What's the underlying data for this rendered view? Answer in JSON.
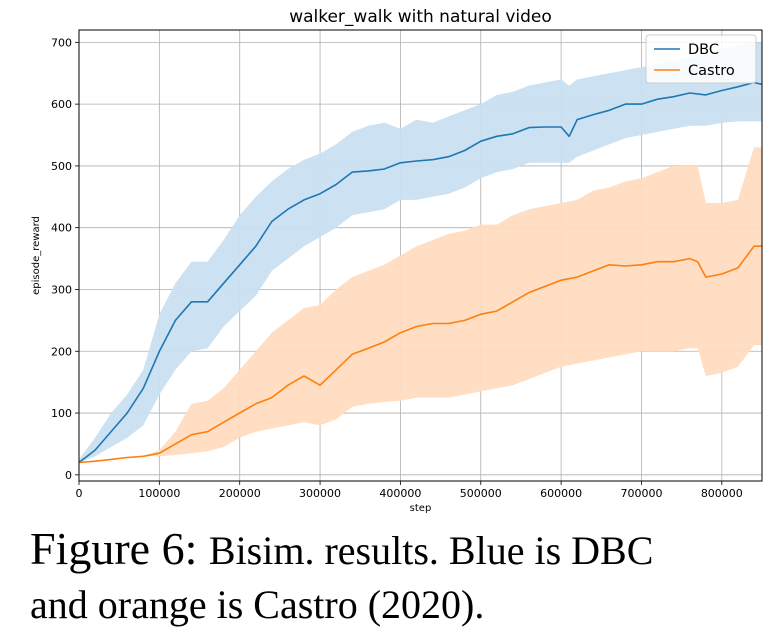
{
  "chart_data": {
    "type": "line",
    "title": "walker_walk with natural video",
    "xlabel": "step",
    "ylabel": "episode_reward",
    "xlim": [
      0,
      850000
    ],
    "ylim": [
      -10,
      720
    ],
    "xticks": [
      0,
      100000,
      200000,
      300000,
      400000,
      500000,
      600000,
      700000,
      800000
    ],
    "yticks": [
      0,
      100,
      200,
      300,
      400,
      500,
      600,
      700
    ],
    "grid": true,
    "legend_position": "top-right",
    "series": [
      {
        "name": "DBC",
        "color": "#1f77b4",
        "band_color": "#c9dff0",
        "x": [
          0,
          20000,
          40000,
          60000,
          80000,
          100000,
          120000,
          140000,
          160000,
          180000,
          200000,
          220000,
          240000,
          260000,
          280000,
          300000,
          320000,
          340000,
          360000,
          380000,
          400000,
          420000,
          440000,
          460000,
          480000,
          500000,
          520000,
          540000,
          560000,
          580000,
          600000,
          610000,
          620000,
          640000,
          660000,
          680000,
          700000,
          720000,
          740000,
          760000,
          780000,
          800000,
          820000,
          840000,
          850000
        ],
        "mean": [
          20,
          40,
          70,
          100,
          140,
          200,
          250,
          280,
          280,
          310,
          340,
          370,
          410,
          430,
          445,
          455,
          470,
          490,
          492,
          495,
          505,
          508,
          510,
          515,
          525,
          540,
          548,
          552,
          562,
          563,
          563,
          548,
          575,
          583,
          590,
          600,
          600,
          608,
          612,
          618,
          615,
          622,
          628,
          635,
          632
        ],
        "upper": [
          25,
          60,
          100,
          130,
          170,
          260,
          310,
          345,
          345,
          380,
          420,
          450,
          475,
          495,
          510,
          520,
          535,
          555,
          565,
          570,
          560,
          575,
          570,
          580,
          590,
          600,
          615,
          620,
          630,
          635,
          640,
          630,
          640,
          645,
          650,
          655,
          660,
          665,
          670,
          675,
          680,
          690,
          695,
          700,
          700
        ],
        "lower": [
          20,
          30,
          45,
          60,
          80,
          130,
          170,
          200,
          205,
          240,
          265,
          290,
          330,
          350,
          370,
          385,
          400,
          420,
          425,
          430,
          445,
          445,
          450,
          455,
          465,
          480,
          490,
          495,
          505,
          505,
          505,
          505,
          515,
          525,
          535,
          545,
          550,
          555,
          560,
          565,
          565,
          570,
          572,
          572,
          572
        ]
      },
      {
        "name": "Castro",
        "color": "#ff7f0e",
        "band_color": "#ffdcc0",
        "x": [
          0,
          20000,
          40000,
          60000,
          80000,
          100000,
          120000,
          140000,
          160000,
          180000,
          200000,
          220000,
          240000,
          260000,
          280000,
          300000,
          320000,
          340000,
          360000,
          380000,
          400000,
          420000,
          440000,
          460000,
          480000,
          500000,
          520000,
          540000,
          560000,
          580000,
          600000,
          620000,
          640000,
          660000,
          680000,
          700000,
          720000,
          740000,
          760000,
          770000,
          780000,
          800000,
          820000,
          840000,
          850000
        ],
        "mean": [
          20,
          22,
          25,
          28,
          30,
          35,
          50,
          65,
          70,
          85,
          100,
          115,
          125,
          145,
          160,
          145,
          170,
          195,
          205,
          215,
          230,
          240,
          245,
          245,
          250,
          260,
          265,
          280,
          295,
          305,
          315,
          320,
          330,
          340,
          338,
          340,
          345,
          345,
          350,
          345,
          320,
          325,
          335,
          370,
          370
        ],
        "upper": [
          20,
          22,
          25,
          28,
          30,
          40,
          70,
          115,
          120,
          140,
          170,
          200,
          230,
          250,
          270,
          275,
          300,
          320,
          330,
          340,
          355,
          370,
          380,
          390,
          395,
          405,
          405,
          420,
          430,
          435,
          440,
          445,
          460,
          465,
          475,
          480,
          490,
          500,
          500,
          500,
          440,
          440,
          445,
          530,
          530
        ],
        "lower": [
          20,
          22,
          25,
          28,
          30,
          30,
          32,
          35,
          38,
          45,
          60,
          70,
          75,
          80,
          85,
          80,
          90,
          110,
          115,
          118,
          120,
          125,
          125,
          125,
          130,
          135,
          140,
          145,
          155,
          165,
          175,
          180,
          185,
          190,
          195,
          200,
          200,
          200,
          205,
          205,
          160,
          165,
          175,
          210,
          210
        ]
      }
    ]
  },
  "caption": {
    "label": "Figure 6:",
    "text_line1": "Bisim. results. Blue is DBC",
    "text_line2": "and orange is Castro (2020)."
  }
}
